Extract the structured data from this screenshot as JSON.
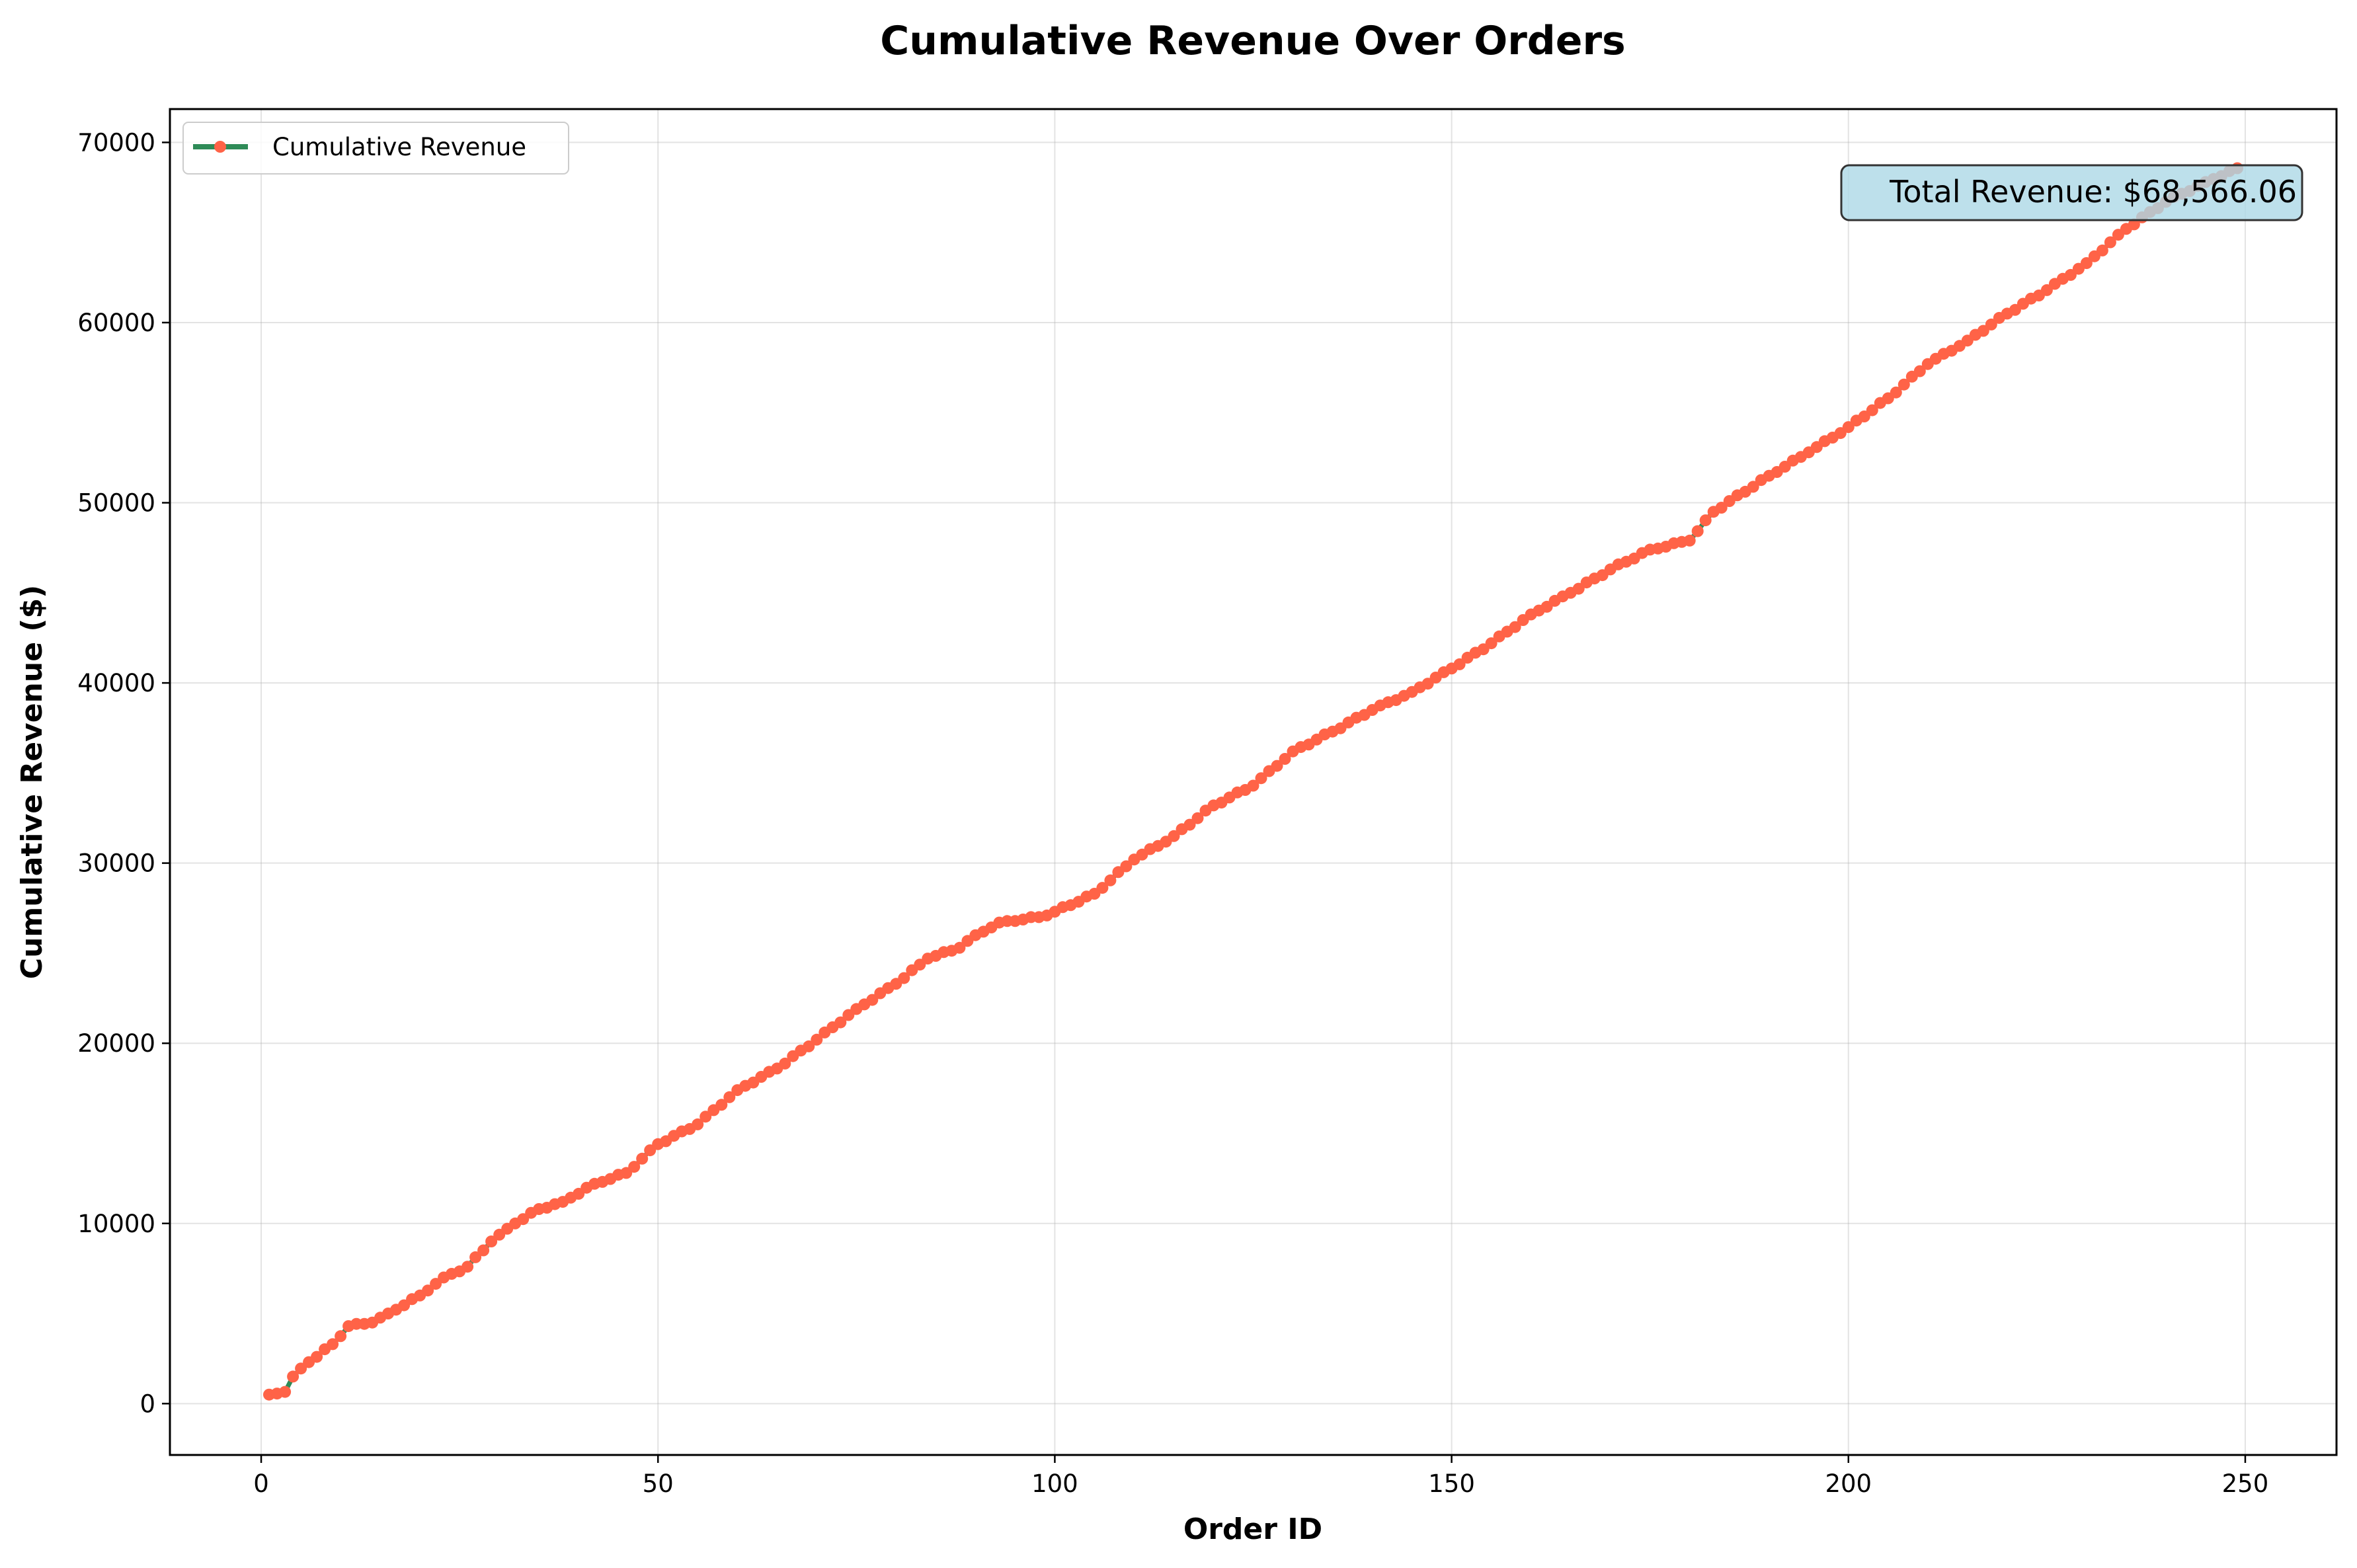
{
  "chart_data": {
    "type": "line",
    "title": "Cumulative Revenue Over Orders",
    "xlabel": "Order ID",
    "ylabel": "Cumulative Revenue ($)",
    "xlim": [
      -11.5,
      261.5
    ],
    "ylim": [
      -2850,
      71850
    ],
    "xticks": [
      0,
      50,
      100,
      150,
      200,
      250
    ],
    "yticks": [
      0,
      10000,
      20000,
      30000,
      40000,
      50000,
      60000,
      70000
    ],
    "grid": true,
    "legend_position": "top-left",
    "line_color": "#2e8b57",
    "marker_color": "#ff6347",
    "annotation_bg": "#add8e6",
    "annotation": "Total Revenue: $68,566.06",
    "series": [
      {
        "name": "Cumulative Revenue",
        "anchors": [
          [
            1,
            500
          ],
          [
            3,
            650
          ],
          [
            4,
            1500
          ],
          [
            6,
            2300
          ],
          [
            9,
            3300
          ],
          [
            11,
            4300
          ],
          [
            14,
            4500
          ],
          [
            16,
            5000
          ],
          [
            20,
            6000
          ],
          [
            23,
            7000
          ],
          [
            26,
            7600
          ],
          [
            29,
            9000
          ],
          [
            32,
            10000
          ],
          [
            35,
            10800
          ],
          [
            38,
            11200
          ],
          [
            42,
            12200
          ],
          [
            46,
            12800
          ],
          [
            50,
            14400
          ],
          [
            55,
            15500
          ],
          [
            60,
            17400
          ],
          [
            65,
            18600
          ],
          [
            70,
            20200
          ],
          [
            75,
            21900
          ],
          [
            80,
            23300
          ],
          [
            84,
            24700
          ],
          [
            88,
            25300
          ],
          [
            90,
            26000
          ],
          [
            93,
            26700
          ],
          [
            98,
            27000
          ],
          [
            100,
            27300
          ],
          [
            105,
            28300
          ],
          [
            110,
            30200
          ],
          [
            115,
            31500
          ],
          [
            120,
            33200
          ],
          [
            125,
            34300
          ],
          [
            130,
            36200
          ],
          [
            135,
            37300
          ],
          [
            140,
            38500
          ],
          [
            145,
            39500
          ],
          [
            150,
            40800
          ],
          [
            155,
            42200
          ],
          [
            160,
            43800
          ],
          [
            165,
            45000
          ],
          [
            170,
            46300
          ],
          [
            175,
            47400
          ],
          [
            180,
            47900
          ],
          [
            183,
            49500
          ],
          [
            190,
            51500
          ],
          [
            195,
            52800
          ],
          [
            200,
            54200
          ],
          [
            205,
            55800
          ],
          [
            210,
            57700
          ],
          [
            215,
            59000
          ],
          [
            220,
            60500
          ],
          [
            225,
            61800
          ],
          [
            230,
            63300
          ],
          [
            235,
            65200
          ],
          [
            240,
            66700
          ],
          [
            245,
            67800
          ],
          [
            249,
            68566.06
          ]
        ]
      }
    ]
  }
}
